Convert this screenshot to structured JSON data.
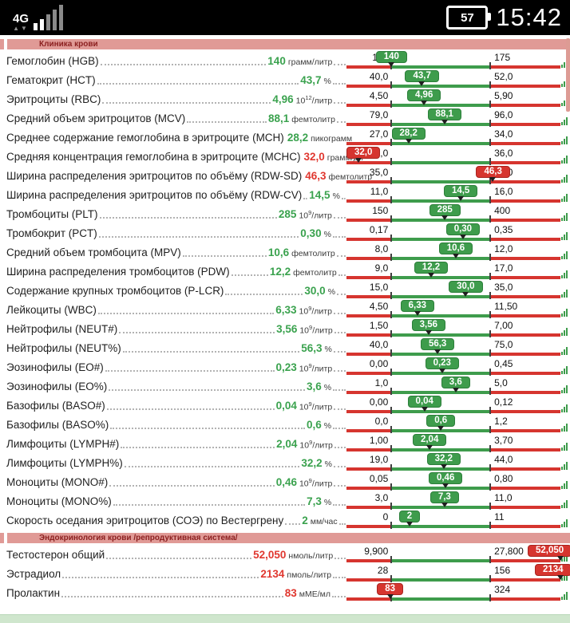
{
  "status_bar": {
    "network_type": "4G",
    "battery_percent": "57",
    "time": "15:42"
  },
  "colors": {
    "normal_green": "#3e9c4c",
    "alert_red": "#d6352f",
    "header_pink": "#e09a96",
    "header_text": "#8b1f1f",
    "bottom_bar_green": "#cfe6cd",
    "scrollbar_pink": "#dd9b94"
  },
  "sections": [
    {
      "title": "Клиника крови",
      "rows": [
        {
          "name": "Гемоглобин (HGB)",
          "value": "140",
          "unit": "грамм/литр",
          "min": "140",
          "max": "175",
          "value_num": 140,
          "min_num": 140,
          "max_num": 175,
          "status": "normal"
        },
        {
          "name": "Гематокрит (HCT)",
          "value": "43,7",
          "unit": "%",
          "min": "40,0",
          "max": "52,0",
          "value_num": 43.7,
          "min_num": 40,
          "max_num": 52,
          "status": "normal"
        },
        {
          "name": "Эритроциты (RBC)",
          "value": "4,96",
          "unit": "10^12/литр",
          "min": "4,50",
          "max": "5,90",
          "value_num": 4.96,
          "min_num": 4.5,
          "max_num": 5.9,
          "status": "normal"
        },
        {
          "name": "Средний объем эритроцитов (MCV)",
          "value": "88,1",
          "unit": "фемтолитр",
          "min": "79,0",
          "max": "96,0",
          "value_num": 88.1,
          "min_num": 79,
          "max_num": 96,
          "status": "normal"
        },
        {
          "name": "Среднее содержание гемоглобина в эритроците (MCH)",
          "value": "28,2",
          "unit": "пикограмм",
          "min": "27,0",
          "max": "34,0",
          "value_num": 28.2,
          "min_num": 27,
          "max_num": 34,
          "status": "normal"
        },
        {
          "name": "Средняя концентрация гемоглобина в эритроците (MCHC)",
          "value": "32,0",
          "unit": "грамм/дл",
          "min": "33,0",
          "max": "36,0",
          "value_num": 32,
          "min_num": 33,
          "max_num": 36,
          "status": "low"
        },
        {
          "name": "Ширина распределения эритроцитов по объёму (RDW-SD)",
          "value": "46,3",
          "unit": "фемтолитр",
          "min": "35,0",
          "max": "46,0",
          "value_num": 46.3,
          "min_num": 35,
          "max_num": 46,
          "status": "high"
        },
        {
          "name": "Ширина распределения эритроцитов по объёму (RDW-CV)",
          "value": "14,5",
          "unit": "%",
          "min": "11,0",
          "max": "16,0",
          "value_num": 14.5,
          "min_num": 11,
          "max_num": 16,
          "status": "normal"
        },
        {
          "name": "Тромбоциты (PLT)",
          "value": "285",
          "unit": "10^9/литр",
          "min": "150",
          "max": "400",
          "value_num": 285,
          "min_num": 150,
          "max_num": 400,
          "status": "normal"
        },
        {
          "name": "Тромбокрит (PCT)",
          "value": "0,30",
          "unit": "%",
          "min": "0,17",
          "max": "0,35",
          "value_num": 0.3,
          "min_num": 0.17,
          "max_num": 0.35,
          "status": "normal"
        },
        {
          "name": "Средний объем тромбоцита (MPV)",
          "value": "10,6",
          "unit": "фемтолитр",
          "min": "8,0",
          "max": "12,0",
          "value_num": 10.6,
          "min_num": 8,
          "max_num": 12,
          "status": "normal"
        },
        {
          "name": "Ширина распределения тромбоцитов (PDW)",
          "value": "12,2",
          "unit": "фемтолитр",
          "min": "9,0",
          "max": "17,0",
          "value_num": 12.2,
          "min_num": 9,
          "max_num": 17,
          "status": "normal"
        },
        {
          "name": "Содержание крупных тромбоцитов (P-LCR)",
          "value": "30,0",
          "unit": "%",
          "min": "15,0",
          "max": "35,0",
          "value_num": 30,
          "min_num": 15,
          "max_num": 35,
          "status": "normal"
        },
        {
          "name": "Лейкоциты (WBC)",
          "value": "6,33",
          "unit": "10^9/литр",
          "min": "4,50",
          "max": "11,50",
          "value_num": 6.33,
          "min_num": 4.5,
          "max_num": 11.5,
          "status": "normal"
        },
        {
          "name": "Нейтрофилы (NEUT#)",
          "value": "3,56",
          "unit": "10^9/литр",
          "min": "1,50",
          "max": "7,00",
          "value_num": 3.56,
          "min_num": 1.5,
          "max_num": 7,
          "status": "normal"
        },
        {
          "name": "Нейтрофилы (NEUT%)",
          "value": "56,3",
          "unit": "%",
          "min": "40,0",
          "max": "75,0",
          "value_num": 56.3,
          "min_num": 40,
          "max_num": 75,
          "status": "normal"
        },
        {
          "name": "Эозинофилы (EO#)",
          "value": "0,23",
          "unit": "10^9/литр",
          "min": "0,00",
          "max": "0,45",
          "value_num": 0.23,
          "min_num": 0,
          "max_num": 0.45,
          "status": "normal"
        },
        {
          "name": "Эозинофилы (EO%)",
          "value": "3,6",
          "unit": "%",
          "min": "1,0",
          "max": "5,0",
          "value_num": 3.6,
          "min_num": 1,
          "max_num": 5,
          "status": "normal"
        },
        {
          "name": "Базофилы (BASO#)",
          "value": "0,04",
          "unit": "10^9/литр",
          "min": "0,00",
          "max": "0,12",
          "value_num": 0.04,
          "min_num": 0,
          "max_num": 0.12,
          "status": "normal"
        },
        {
          "name": "Базофилы (BASO%)",
          "value": "0,6",
          "unit": "%",
          "min": "0,0",
          "max": "1,2",
          "value_num": 0.6,
          "min_num": 0,
          "max_num": 1.2,
          "status": "normal"
        },
        {
          "name": "Лимфоциты (LYMPH#)",
          "value": "2,04",
          "unit": "10^9/литр",
          "min": "1,00",
          "max": "3,70",
          "value_num": 2.04,
          "min_num": 1,
          "max_num": 3.7,
          "status": "normal"
        },
        {
          "name": "Лимфоциты (LYMPH%)",
          "value": "32,2",
          "unit": "%",
          "min": "19,0",
          "max": "44,0",
          "value_num": 32.2,
          "min_num": 19,
          "max_num": 44,
          "status": "normal"
        },
        {
          "name": "Моноциты (MONO#)",
          "value": "0,46",
          "unit": "10^9/литр",
          "min": "0,05",
          "max": "0,80",
          "value_num": 0.46,
          "min_num": 0.05,
          "max_num": 0.8,
          "status": "normal"
        },
        {
          "name": "Моноциты (MONO%)",
          "value": "7,3",
          "unit": "%",
          "min": "3,0",
          "max": "11,0",
          "value_num": 7.3,
          "min_num": 3,
          "max_num": 11,
          "status": "normal"
        },
        {
          "name": "Скорость оседания эритроцитов (СОЭ) по Вестергрену",
          "value": "2",
          "unit": "мм/час",
          "min": "0",
          "max": "11",
          "value_num": 2,
          "min_num": 0,
          "max_num": 11,
          "status": "normal"
        }
      ]
    },
    {
      "title": "Эндокринология крови /репродуктивная система/",
      "rows": [
        {
          "name": "Тестостерон общий",
          "value": "52,050",
          "unit": "нмоль/литр",
          "min": "9,900",
          "max": "27,800",
          "value_num": 52.05,
          "min_num": 9.9,
          "max_num": 27.8,
          "status": "high"
        },
        {
          "name": "Эстрадиол",
          "value": "2134",
          "unit": "пмоль/литр",
          "min": "28",
          "max": "156",
          "value_num": 2134,
          "min_num": 28,
          "max_num": 156,
          "status": "high"
        },
        {
          "name": "Пролактин",
          "value": "83",
          "unit": "мМЕ/мл",
          "min": "86",
          "max": "324",
          "value_num": 83,
          "min_num": 86,
          "max_num": 324,
          "status": "low"
        }
      ]
    }
  ]
}
